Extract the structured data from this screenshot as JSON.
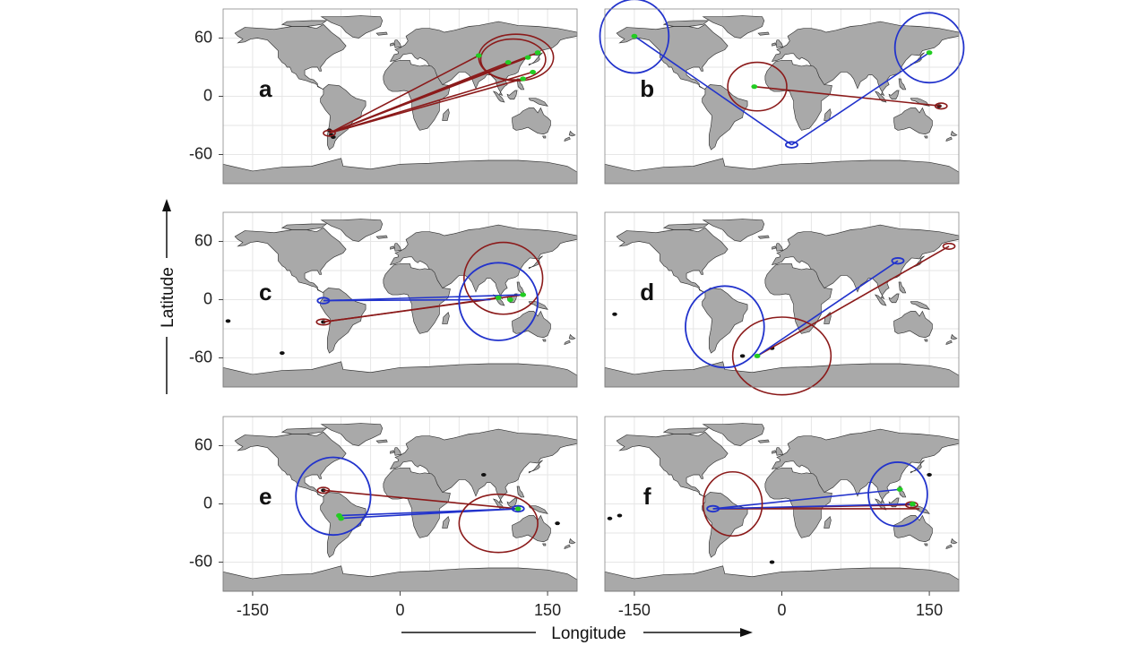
{
  "figure": {
    "xlabel": "Longitude",
    "ylabel": "Latitude",
    "x_ticks": [
      "-150",
      "0",
      "150"
    ],
    "y_ticks": [
      "60",
      "0",
      "-60"
    ],
    "colors": {
      "land": "#a9a9a9",
      "ocean": "#ffffff",
      "dark_red": "#8b1a1a",
      "blue": "#2233cc",
      "green": "#22cc22",
      "grid": "#e6e6e6"
    }
  },
  "chart_data": {
    "type": "map",
    "xlim": [
      -180,
      180
    ],
    "ylim": [
      -90,
      90
    ],
    "grid": true,
    "panels": [
      {
        "label": "a",
        "red_lines": [
          [
            -72,
            -38,
            80,
            42
          ],
          [
            -72,
            -38,
            110,
            35
          ],
          [
            -72,
            -38,
            130,
            40
          ],
          [
            -72,
            -38,
            140,
            45
          ],
          [
            -72,
            -38,
            125,
            18
          ],
          [
            -72,
            -38,
            135,
            25
          ]
        ],
        "blue_lines": [],
        "red_circles": [
          [
            -72,
            -38,
            6,
            3
          ],
          [
            118,
            40,
            38,
            24
          ],
          [
            115,
            38,
            33,
            21
          ]
        ],
        "blue_circles": [],
        "green_points": [
          [
            80,
            42
          ],
          [
            110,
            35
          ],
          [
            130,
            40
          ],
          [
            140,
            45
          ],
          [
            125,
            18
          ],
          [
            135,
            25
          ]
        ],
        "black_points": [
          [
            -70,
            -40
          ],
          [
            -72,
            -35
          ],
          [
            -68,
            -42
          ]
        ]
      },
      {
        "label": "b",
        "red_lines": [
          [
            -28,
            10,
            162,
            -10
          ]
        ],
        "blue_lines": [
          [
            -150,
            62,
            10,
            -50
          ],
          [
            10,
            -50,
            150,
            45
          ]
        ],
        "red_circles": [
          [
            -25,
            10,
            30,
            25
          ],
          [
            162,
            -10,
            6,
            3
          ]
        ],
        "blue_circles": [
          [
            -150,
            62,
            35,
            38
          ],
          [
            150,
            50,
            35,
            36
          ],
          [
            10,
            -50,
            6,
            3
          ]
        ],
        "green_points": [
          [
            -150,
            62
          ],
          [
            150,
            45
          ],
          [
            -28,
            10
          ]
        ],
        "black_points": [
          [
            160,
            -10
          ]
        ]
      },
      {
        "label": "c",
        "red_lines": [
          [
            -78,
            -23,
            100,
            2
          ],
          [
            -78,
            -23,
            125,
            5
          ]
        ],
        "blue_lines": [
          [
            -78,
            -1,
            92,
            0
          ],
          [
            -78,
            -1,
            125,
            5
          ]
        ],
        "red_circles": [
          [
            -78,
            -23,
            7,
            3
          ],
          [
            105,
            22,
            40,
            37
          ]
        ],
        "blue_circles": [
          [
            -78,
            -1,
            6,
            3
          ],
          [
            100,
            -2,
            40,
            40
          ]
        ],
        "green_points": [
          [
            100,
            2
          ],
          [
            112,
            0
          ],
          [
            125,
            5
          ]
        ],
        "black_points": [
          [
            -78,
            -23
          ],
          [
            -175,
            -22
          ],
          [
            -120,
            -55
          ]
        ]
      },
      {
        "label": "d",
        "red_lines": [
          [
            -25,
            -58,
            170,
            55
          ]
        ],
        "blue_lines": [
          [
            -25,
            -58,
            118,
            40
          ]
        ],
        "red_circles": [
          [
            170,
            55,
            6,
            3
          ],
          [
            0,
            -58,
            50,
            40
          ]
        ],
        "blue_circles": [
          [
            118,
            40,
            6,
            3
          ],
          [
            -58,
            -28,
            40,
            42
          ]
        ],
        "green_points": [
          [
            -25,
            -58
          ]
        ],
        "black_points": [
          [
            -170,
            -15
          ],
          [
            -40,
            -58
          ],
          [
            -10,
            -50
          ]
        ]
      },
      {
        "label": "e",
        "red_lines": [
          [
            -78,
            14,
            120,
            -5
          ]
        ],
        "blue_lines": [
          [
            -62,
            -15,
            120,
            -5
          ],
          [
            -62,
            -12,
            120,
            -5
          ]
        ],
        "red_circles": [
          [
            -78,
            14,
            6,
            3
          ],
          [
            100,
            -20,
            40,
            30
          ]
        ],
        "blue_circles": [
          [
            -68,
            8,
            38,
            40
          ],
          [
            120,
            -5,
            6,
            3
          ]
        ],
        "green_points": [
          [
            -62,
            -12
          ],
          [
            -60,
            -15
          ],
          [
            120,
            -5
          ]
        ],
        "black_points": [
          [
            -78,
            14
          ],
          [
            85,
            30
          ],
          [
            160,
            -20
          ]
        ]
      },
      {
        "label": "f",
        "red_lines": [
          [
            -65,
            -5,
            133,
            -1
          ],
          [
            -65,
            -5,
            140,
            -5
          ]
        ],
        "blue_lines": [
          [
            -70,
            -5,
            120,
            15
          ],
          [
            -70,
            -5,
            133,
            0
          ]
        ],
        "red_circles": [
          [
            -50,
            0,
            30,
            33
          ],
          [
            132,
            -1,
            6,
            3
          ]
        ],
        "blue_circles": [
          [
            -70,
            -5,
            6,
            3
          ],
          [
            118,
            10,
            30,
            33
          ]
        ],
        "green_points": [
          [
            120,
            15
          ],
          [
            133,
            0
          ]
        ],
        "black_points": [
          [
            -175,
            -15
          ],
          [
            -165,
            -12
          ],
          [
            -10,
            -60
          ],
          [
            150,
            30
          ]
        ]
      }
    ]
  }
}
